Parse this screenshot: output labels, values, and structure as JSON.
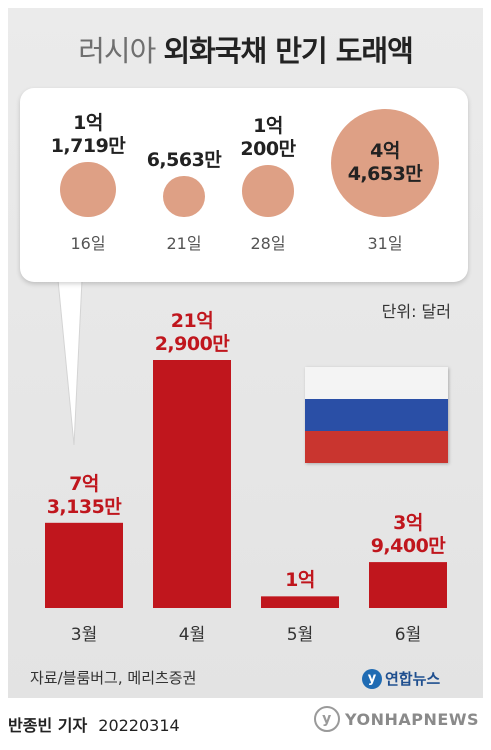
{
  "title": {
    "light": "러시아",
    "bold": "외화국채 만기 도래액"
  },
  "unit": "단위: 달러",
  "colors": {
    "bar": "#c0161d",
    "bubble": "#dea085",
    "label_red": "#c0161d",
    "flag": [
      "#ffffff",
      "#2a4fa6",
      "#c9352f"
    ]
  },
  "chart_data": [
    {
      "type": "bar",
      "categories": [
        "3월",
        "4월",
        "5월",
        "6월"
      ],
      "values": [
        73135,
        212900,
        10000,
        39400
      ],
      "value_labels": [
        [
          "7억",
          "3,135만"
        ],
        [
          "21억",
          "2,900만"
        ],
        [
          "1억"
        ],
        [
          "3억",
          "9,400만"
        ]
      ],
      "value_unit": "만 달러"
    },
    {
      "type": "scatter",
      "categories": [
        "16일",
        "21일",
        "28일",
        "31일"
      ],
      "values": [
        11719,
        6563,
        10200,
        44653
      ],
      "value_labels": [
        [
          "1억",
          "1,719만"
        ],
        [
          "6,563만"
        ],
        [
          "1억",
          "200만"
        ],
        [
          "4억",
          "4,653만"
        ]
      ],
      "value_unit": "만 달러"
    }
  ],
  "source": "자료/블룸버그, 메리츠증권",
  "logo_text": "연합뉴스",
  "byline": {
    "author": "반종빈 기자",
    "date": "20220314"
  },
  "watermark": "YONHAPNEWS"
}
